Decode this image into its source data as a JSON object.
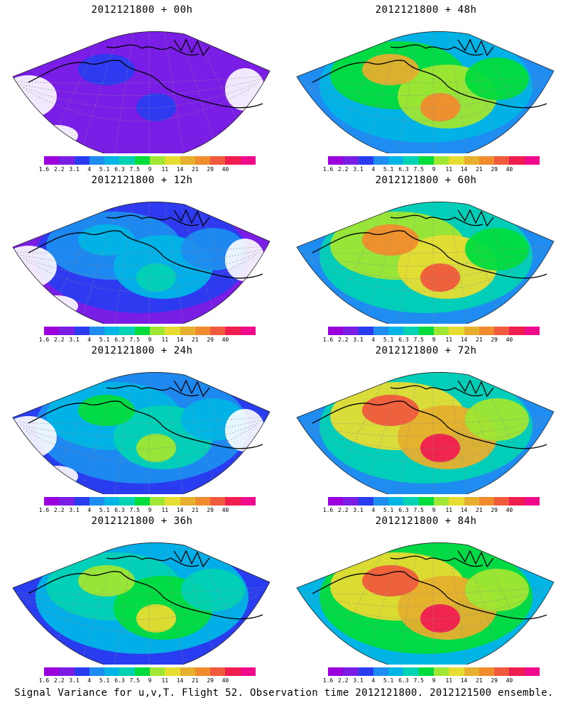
{
  "panels": [
    {
      "title": "2012121800 + 00h",
      "level": 0.12
    },
    {
      "title": "2012121800 + 48h",
      "level": 0.62
    },
    {
      "title": "2012121800 + 12h",
      "level": 0.3
    },
    {
      "title": "2012121800 + 60h",
      "level": 0.68
    },
    {
      "title": "2012121800 + 24h",
      "level": 0.42
    },
    {
      "title": "2012121800 + 72h",
      "level": 0.75
    },
    {
      "title": "2012121800 + 36h",
      "level": 0.52
    },
    {
      "title": "2012121800 + 84h",
      "level": 0.8
    }
  ],
  "colorbar": {
    "labels": [
      "1.6",
      "2.2",
      "3.1",
      "4",
      "5.1",
      "6.3",
      "7.5",
      "9",
      "11",
      "14",
      "21",
      "29",
      "40"
    ],
    "colors": [
      "#9b00dc",
      "#7a1ee6",
      "#2a3cf0",
      "#1e8cf0",
      "#00b4e6",
      "#00d2b4",
      "#00dc3c",
      "#a0e632",
      "#e6dc32",
      "#e6af2d",
      "#f08c2d",
      "#f05a3c",
      "#f01e50",
      "#f00a8c"
    ]
  },
  "footer": "Signal Variance for u,v,T. Flight 52. Observation time 2012121800. 2012121500 ensemble."
}
